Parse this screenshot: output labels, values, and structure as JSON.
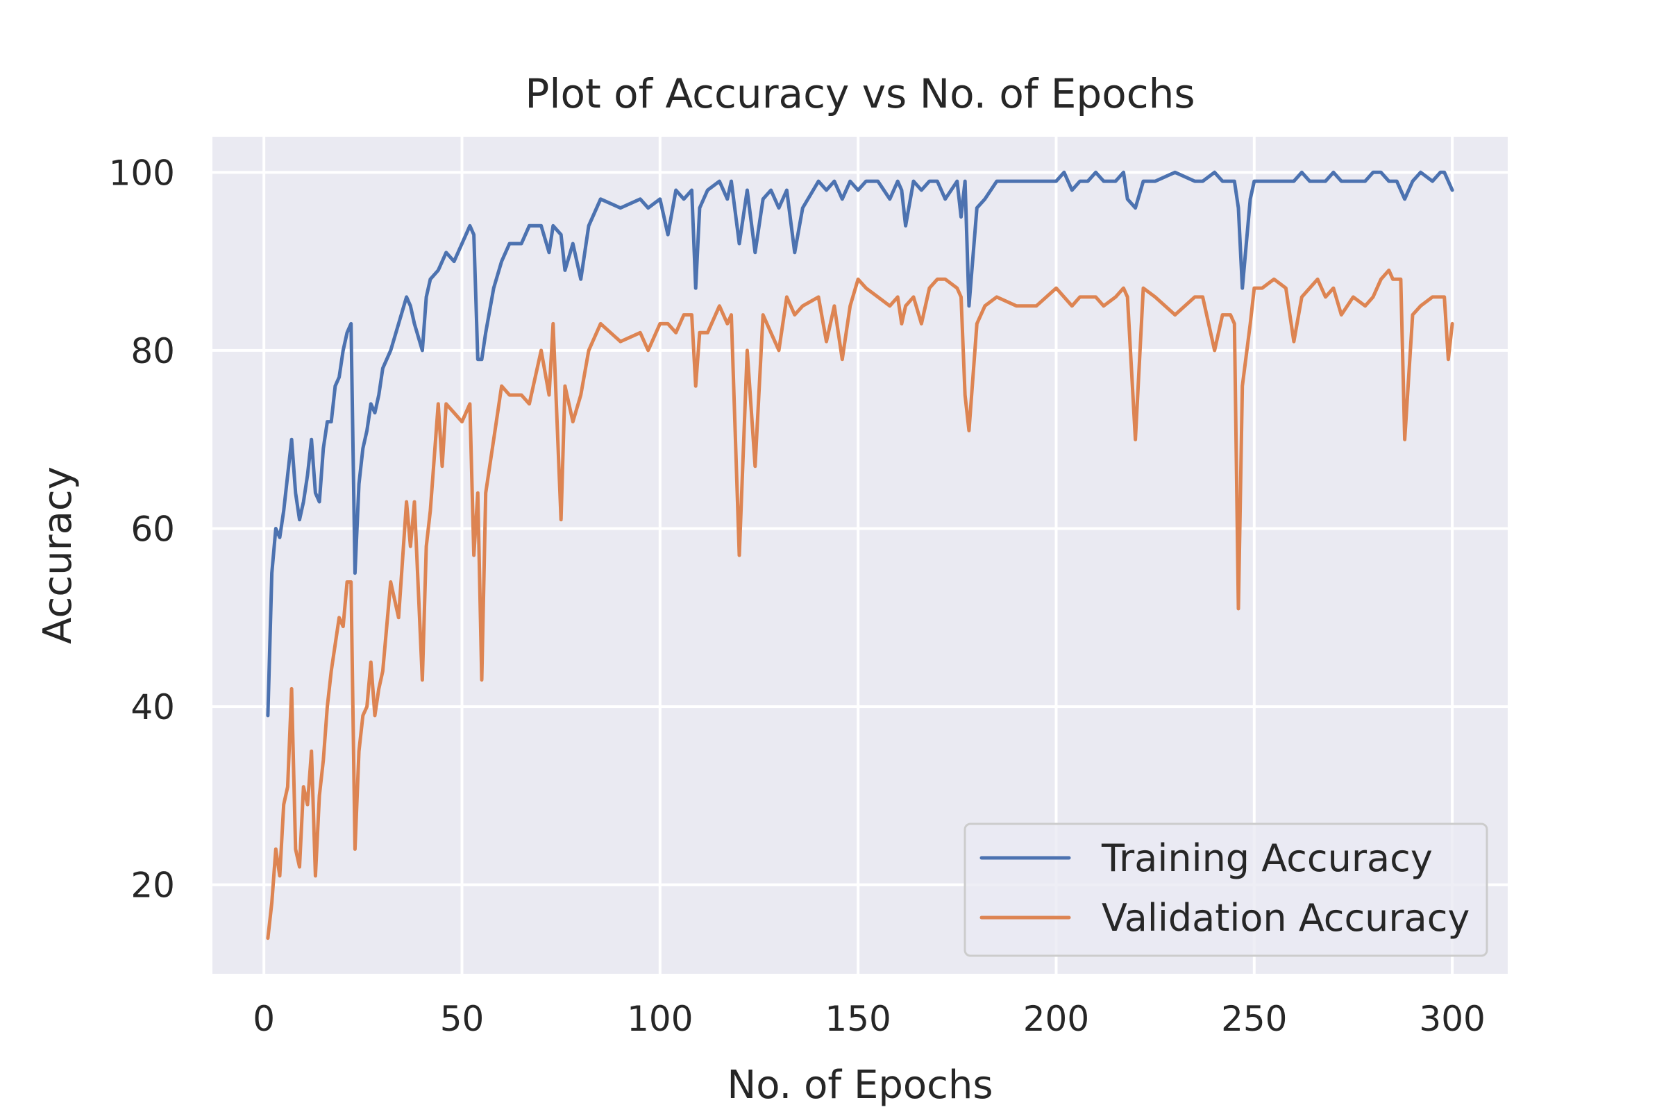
{
  "chart_data": {
    "type": "line",
    "title": "Plot of Accuracy vs No. of Epochs",
    "xlabel": "No. of Epochs",
    "ylabel": "Accuracy",
    "xlim": [
      -13,
      314
    ],
    "ylim": [
      10,
      104
    ],
    "xticks": [
      0,
      50,
      100,
      150,
      200,
      250,
      300
    ],
    "yticks": [
      20,
      40,
      60,
      80,
      100
    ],
    "grid": true,
    "legend_position": "lower-right",
    "colors": {
      "plot_background": "#eaeaf2",
      "grid": "#ffffff",
      "legend_border": "#cccccc"
    },
    "series": [
      {
        "name": "Training Accuracy",
        "color": "#4c72b0",
        "x": [
          1,
          2,
          3,
          4,
          5,
          6,
          7,
          8,
          9,
          10,
          11,
          12,
          13,
          14,
          15,
          16,
          17,
          18,
          19,
          20,
          21,
          22,
          23,
          24,
          25,
          26,
          27,
          28,
          29,
          30,
          32,
          34,
          36,
          37,
          38,
          40,
          41,
          42,
          44,
          45,
          46,
          48,
          50,
          52,
          53,
          54,
          55,
          56,
          58,
          60,
          62,
          65,
          67,
          70,
          72,
          73,
          75,
          76,
          78,
          80,
          82,
          85,
          90,
          95,
          97,
          100,
          102,
          104,
          106,
          108,
          109,
          110,
          112,
          115,
          117,
          118,
          120,
          122,
          124,
          126,
          128,
          130,
          132,
          134,
          136,
          140,
          142,
          144,
          146,
          148,
          150,
          152,
          155,
          158,
          160,
          161,
          162,
          164,
          166,
          168,
          170,
          172,
          175,
          176,
          177,
          178,
          180,
          182,
          185,
          190,
          195,
          200,
          202,
          204,
          206,
          208,
          210,
          212,
          215,
          217,
          218,
          220,
          222,
          225,
          230,
          235,
          237,
          240,
          242,
          244,
          245,
          246,
          247,
          249,
          250,
          252,
          255,
          258,
          260,
          262,
          264,
          266,
          268,
          270,
          272,
          275,
          278,
          280,
          282,
          284,
          285,
          286,
          287,
          288,
          290,
          292,
          295,
          297,
          298,
          299,
          300
        ],
        "y": [
          39,
          55,
          60,
          59,
          62,
          66,
          70,
          64,
          61,
          63,
          66,
          70,
          64,
          63,
          69,
          72,
          72,
          76,
          77,
          80,
          82,
          83,
          55,
          65,
          69,
          71,
          74,
          73,
          75,
          78,
          80,
          83,
          86,
          85,
          83,
          80,
          86,
          88,
          89,
          90,
          91,
          90,
          92,
          94,
          93,
          79,
          79,
          82,
          87,
          90,
          92,
          92,
          94,
          94,
          91,
          94,
          93,
          89,
          92,
          88,
          94,
          97,
          96,
          97,
          96,
          97,
          93,
          98,
          97,
          98,
          87,
          96,
          98,
          99,
          97,
          99,
          92,
          98,
          91,
          97,
          98,
          96,
          98,
          91,
          96,
          99,
          98,
          99,
          97,
          99,
          98,
          99,
          99,
          97,
          99,
          98,
          94,
          99,
          98,
          99,
          99,
          97,
          99,
          95,
          99,
          85,
          96,
          97,
          99,
          99,
          99,
          99,
          100,
          98,
          99,
          99,
          100,
          99,
          99,
          100,
          97,
          96,
          99,
          99,
          100,
          99,
          99,
          100,
          99,
          99,
          99,
          96,
          87,
          97,
          99,
          99,
          99,
          99,
          99,
          100,
          99,
          99,
          99,
          100,
          99,
          99,
          99,
          100,
          100,
          99,
          99,
          99,
          98,
          97,
          99,
          100,
          99,
          100,
          100,
          99,
          98
        ]
      },
      {
        "name": "Validation Accuracy",
        "color": "#dd8452",
        "x": [
          1,
          2,
          3,
          4,
          5,
          6,
          7,
          8,
          9,
          10,
          11,
          12,
          13,
          14,
          15,
          16,
          17,
          18,
          19,
          20,
          21,
          22,
          23,
          24,
          25,
          26,
          27,
          28,
          29,
          30,
          32,
          34,
          36,
          37,
          38,
          40,
          41,
          42,
          44,
          45,
          46,
          48,
          50,
          52,
          53,
          54,
          55,
          56,
          58,
          60,
          62,
          65,
          67,
          70,
          72,
          73,
          75,
          76,
          78,
          80,
          82,
          85,
          90,
          95,
          97,
          100,
          102,
          104,
          106,
          108,
          109,
          110,
          112,
          115,
          117,
          118,
          120,
          122,
          124,
          126,
          128,
          130,
          132,
          134,
          136,
          140,
          142,
          144,
          146,
          148,
          150,
          152,
          155,
          158,
          160,
          161,
          162,
          164,
          166,
          168,
          170,
          172,
          175,
          176,
          177,
          178,
          180,
          182,
          185,
          190,
          195,
          200,
          202,
          204,
          206,
          208,
          210,
          212,
          215,
          217,
          218,
          220,
          222,
          225,
          230,
          235,
          237,
          240,
          242,
          244,
          245,
          246,
          247,
          249,
          250,
          252,
          255,
          258,
          260,
          262,
          264,
          266,
          268,
          270,
          272,
          275,
          278,
          280,
          282,
          284,
          285,
          286,
          287,
          288,
          290,
          292,
          295,
          297,
          298,
          299,
          300
        ],
        "y": [
          14,
          18,
          24,
          21,
          29,
          31,
          42,
          24,
          22,
          31,
          29,
          35,
          21,
          30,
          34,
          40,
          44,
          47,
          50,
          49,
          54,
          54,
          24,
          35,
          39,
          40,
          45,
          39,
          42,
          44,
          54,
          50,
          63,
          58,
          63,
          43,
          58,
          62,
          74,
          67,
          74,
          73,
          72,
          74,
          57,
          64,
          43,
          64,
          70,
          76,
          75,
          75,
          74,
          80,
          75,
          83,
          61,
          76,
          72,
          75,
          80,
          83,
          81,
          82,
          80,
          83,
          83,
          82,
          84,
          84,
          76,
          82,
          82,
          85,
          83,
          84,
          57,
          80,
          67,
          84,
          82,
          80,
          86,
          84,
          85,
          86,
          81,
          85,
          79,
          85,
          88,
          87,
          86,
          85,
          86,
          83,
          85,
          86,
          83,
          87,
          88,
          88,
          87,
          86,
          75,
          71,
          83,
          85,
          86,
          85,
          85,
          87,
          86,
          85,
          86,
          86,
          86,
          85,
          86,
          87,
          86,
          70,
          87,
          86,
          84,
          86,
          86,
          80,
          84,
          84,
          83,
          51,
          76,
          83,
          87,
          87,
          88,
          87,
          81,
          86,
          87,
          88,
          86,
          87,
          84,
          86,
          85,
          86,
          88,
          89,
          88,
          88,
          88,
          70,
          84,
          85,
          86,
          86,
          86,
          79,
          83
        ]
      }
    ]
  }
}
